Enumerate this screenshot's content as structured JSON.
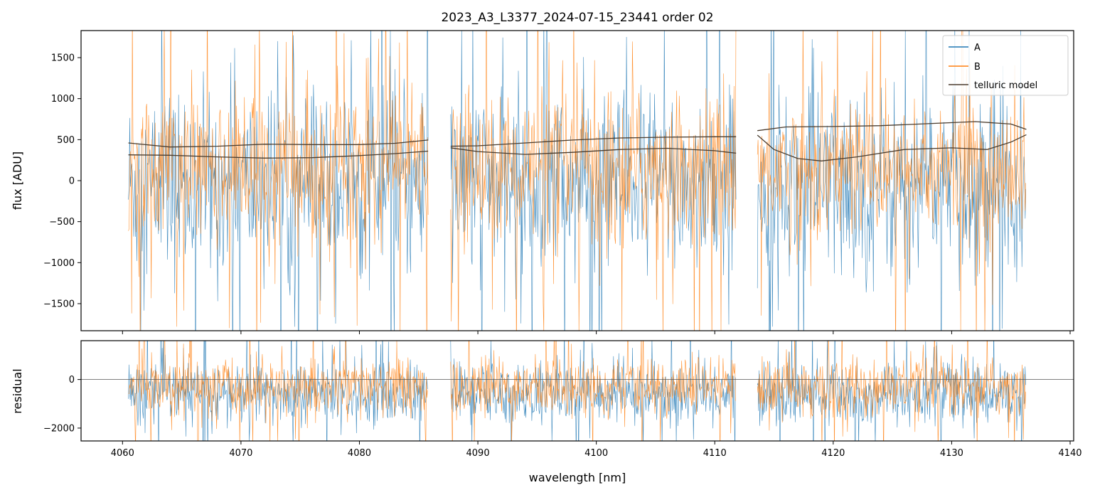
{
  "chart_data": [
    {
      "panel": "main",
      "type": "line",
      "title": "2023_A3_L3377_2024-07-15_23441  order 02",
      "xlabel": "",
      "ylabel": "flux [ADU]",
      "xlim": [
        4056.5,
        4140.3
      ],
      "ylim": [
        -1830,
        1830
      ],
      "xticks": [
        4060,
        4070,
        4080,
        4090,
        4100,
        4110,
        4120,
        4130,
        4140
      ],
      "yticks": [
        -1500,
        -1000,
        -500,
        0,
        500,
        1000,
        1500
      ],
      "ytick_labels": [
        "−1500",
        "−1000",
        "−500",
        "0",
        "500",
        "1000",
        "1500"
      ],
      "grid": false,
      "legend_position": "top-right",
      "segments": [
        [
          4060.5,
          4085.8
        ],
        [
          4087.7,
          4111.8
        ],
        [
          4113.6,
          4136.3
        ]
      ],
      "series": [
        {
          "name": "A",
          "color": "#1f77b4",
          "description": "noisy observed flux, dense band",
          "envelope": {
            "center": -50,
            "upper": 1100,
            "lower": -1500
          }
        },
        {
          "name": "B",
          "color": "#ff7f0e",
          "description": "noisy observed flux, dense band",
          "envelope": {
            "center": 150,
            "upper": 1350,
            "lower": -700
          }
        },
        {
          "name": "telluric model",
          "color": "#4a3c2e",
          "curves": [
            {
              "x": [
                4060.5,
                4064,
                4068,
                4072,
                4076,
                4080,
                4083,
                4085.8
              ],
              "y": [
                460,
                410,
                420,
                445,
                440,
                440,
                455,
                495
              ]
            },
            {
              "x": [
                4060.5,
                4064,
                4068,
                4072,
                4076,
                4080,
                4083,
                4085.8
              ],
              "y": [
                315,
                310,
                290,
                275,
                280,
                305,
                330,
                360
              ]
            },
            {
              "x": [
                4087.7,
                4090,
                4094,
                4098,
                4102,
                4106,
                4110,
                4111.8
              ],
              "y": [
                420,
                425,
                460,
                495,
                520,
                530,
                535,
                535
              ]
            },
            {
              "x": [
                4087.7,
                4090,
                4094,
                4098,
                4102,
                4106,
                4110,
                4111.8
              ],
              "y": [
                400,
                355,
                320,
                345,
                380,
                395,
                365,
                335
              ]
            },
            {
              "x": [
                4113.6,
                4116,
                4120,
                4124,
                4128,
                4132,
                4135,
                4136.3
              ],
              "y": [
                610,
                655,
                660,
                670,
                695,
                720,
                690,
                625
              ]
            },
            {
              "x": [
                4113.6,
                4115,
                4117,
                4119,
                4122,
                4126,
                4130,
                4133,
                4135,
                4136.3
              ],
              "y": [
                555,
                380,
                270,
                240,
                290,
                380,
                400,
                380,
                470,
                560
              ]
            }
          ]
        }
      ]
    },
    {
      "panel": "residual",
      "type": "line",
      "title": "",
      "xlabel": "wavelength [nm]",
      "ylabel": "residual",
      "xlim": [
        4056.5,
        4140.3
      ],
      "ylim": [
        -2530,
        1600
      ],
      "xticks": [
        4060,
        4070,
        4080,
        4090,
        4100,
        4110,
        4120,
        4130,
        4140
      ],
      "xtick_labels": [
        "4060",
        "4070",
        "4080",
        "4090",
        "4100",
        "4110",
        "4120",
        "4130",
        "4140"
      ],
      "yticks": [
        -2000,
        0
      ],
      "ytick_labels": [
        "−2000",
        "0"
      ],
      "zero_line": 0,
      "segments": [
        [
          4060.5,
          4085.8
        ],
        [
          4087.7,
          4111.8
        ],
        [
          4113.6,
          4136.3
        ]
      ],
      "series": [
        {
          "name": "A",
          "color": "#1f77b4",
          "envelope": {
            "center": -600,
            "upper": 800,
            "lower": -2100
          }
        },
        {
          "name": "B",
          "color": "#ff7f0e",
          "envelope": {
            "center": -300,
            "upper": 1200,
            "lower": -1500
          }
        }
      ]
    }
  ]
}
